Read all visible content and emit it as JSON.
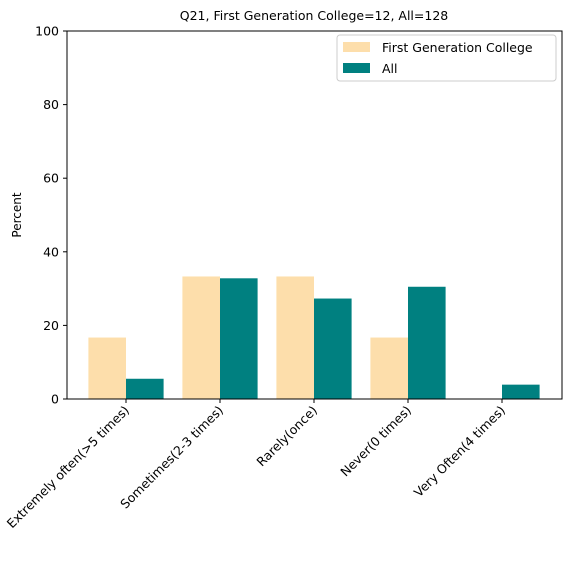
{
  "chart_data": {
    "type": "bar",
    "title": "Q21, First Generation College=12, All=128",
    "xlabel": "",
    "ylabel": "Percent",
    "ylim": [
      0,
      100
    ],
    "yticks": [
      0,
      20,
      40,
      60,
      80,
      100
    ],
    "categories": [
      "Extremely often(>5 times)",
      "Sometimes(2-3 times)",
      "Rarely(once)",
      "Never(0 times)",
      "Very Often(4 times)"
    ],
    "series": [
      {
        "name": "First Generation College",
        "color": "#fddeab",
        "values": [
          16.7,
          33.3,
          33.3,
          16.7,
          0
        ]
      },
      {
        "name": "All",
        "color": "#008080",
        "values": [
          5.5,
          32.8,
          27.3,
          30.5,
          3.9
        ]
      }
    ],
    "legend_position": "top-right",
    "grid": false
  }
}
